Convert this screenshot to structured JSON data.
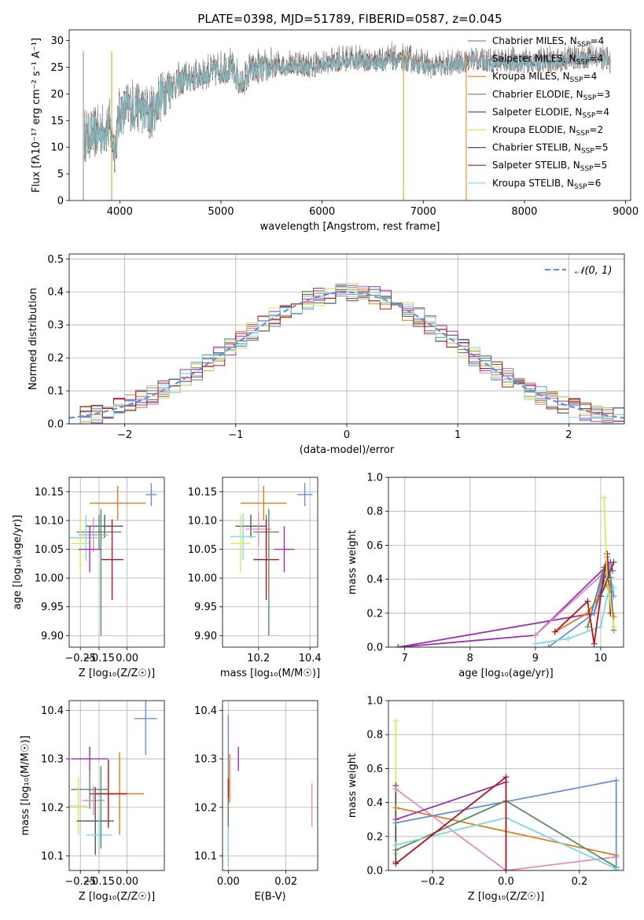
{
  "chart_data": [
    {
      "id": "spectrum",
      "type": "line",
      "title": "PLATE=0398, MJD=51789, FIBERID=0587, z=0.045",
      "xlabel": "wavelength [Angstrom, rest frame]",
      "ylabel": "Flux [fλ10⁻¹⁷ erg cm⁻² s⁻¹ A⁻¹]",
      "xlim": [
        3500,
        9050
      ],
      "ylim": [
        0,
        32
      ],
      "xticks": [
        4000,
        5000,
        6000,
        7000,
        8000,
        9000
      ],
      "yticks": [
        0,
        5,
        10,
        15,
        20,
        25,
        30
      ],
      "grid": false,
      "legend_position": "right",
      "continuum": {
        "x": [
          3650,
          3700,
          3800,
          3900,
          3950,
          4000,
          4100,
          4200,
          4300,
          4400,
          4500,
          4700,
          4900,
          5100,
          5200,
          5300,
          5500,
          5700,
          5900,
          6100,
          6300,
          6500,
          6700,
          6900,
          7100,
          7300,
          7500,
          7700,
          7900,
          8100,
          8300,
          8500,
          8700,
          8850
        ],
        "y": [
          12,
          12.5,
          13,
          14,
          10,
          17,
          18,
          18,
          16,
          20,
          22,
          23.5,
          24.5,
          25.5,
          22,
          25,
          25.5,
          26,
          25.5,
          26.5,
          27,
          26.5,
          27,
          26.5,
          25.5,
          26,
          27,
          26.5,
          26.5,
          26.5,
          26.5,
          27,
          27.5,
          26.5
        ]
      },
      "series": [
        {
          "name": "Chabrier MILES, N_SSP=4",
          "color": "#6a8fd8"
        },
        {
          "name": "Salpeter MILES, N_SSP=4",
          "color": "#e48ebd"
        },
        {
          "name": "Kroupa MILES, N_SSP=4",
          "color": "#e07b1b"
        },
        {
          "name": "Chabrier ELODIE, N_SSP=3",
          "color": "#5b8a66"
        },
        {
          "name": "Salpeter ELODIE, N_SSP=4",
          "color": "#9b30b0"
        },
        {
          "name": "Kroupa ELODIE, N_SSP=2",
          "color": "#d7e85a"
        },
        {
          "name": "Chabrier STELIB, N_SSP=5",
          "color": "#555555"
        },
        {
          "name": "Salpeter STELIB, N_SSP=5",
          "color": "#b0141a"
        },
        {
          "name": "Kroupa STELIB, N_SSP=6",
          "color": "#7fd8e0"
        }
      ]
    },
    {
      "id": "residuals",
      "type": "line",
      "xlabel": "(data-model)/error",
      "ylabel": "Normed distribution",
      "xlim": [
        -2.5,
        2.5
      ],
      "ylim": [
        0,
        0.515
      ],
      "xticks": [
        -2,
        -1,
        0,
        1,
        2
      ],
      "yticks": [
        0.0,
        0.1,
        0.2,
        0.3,
        0.4,
        0.5
      ],
      "grid": true,
      "legend_position": "top-right",
      "legend": "𝒩(0, 1)",
      "gaussian": {
        "mean": 0,
        "sigma": 1,
        "color": "#6a8fd8"
      },
      "histogram_bin_width": 0.1
    },
    {
      "id": "age_vs_Z",
      "type": "scatter",
      "xlabel": "Z [log₁₀(Z/Z☉)]",
      "ylabel": "age  [log₁₀(age/yr)]",
      "xlim": [
        -0.31,
        0.2
      ],
      "ylim": [
        9.88,
        10.175
      ],
      "xticks": [
        -0.25,
        -0.15,
        0.0
      ],
      "xticklabels": [
        "−0.25",
        "−0.15",
        "0.00"
      ],
      "yticks": [
        9.9,
        9.95,
        10.0,
        10.05,
        10.1,
        10.15
      ],
      "grid": true,
      "points": [
        {
          "x": 0.13,
          "xerr": 0.03,
          "y": 10.145,
          "yerr": 0.02,
          "color": "#6a8fd8"
        },
        {
          "x": -0.05,
          "xerr": 0.15,
          "y": 10.13,
          "yerr": 0.03,
          "color": "#e07b1b"
        },
        {
          "x": -0.12,
          "xerr": 0.1,
          "y": 10.09,
          "yerr": 0.02,
          "color": "#555555"
        },
        {
          "x": -0.15,
          "xerr": 0.12,
          "y": 10.08,
          "yerr": 0.03,
          "color": "#5b8a66"
        },
        {
          "x": -0.18,
          "xerr": 0.08,
          "y": 10.075,
          "yerr": 0.03,
          "color": "#e48ebd"
        },
        {
          "x": -0.22,
          "xerr": 0.1,
          "y": 10.07,
          "yerr": 0.04,
          "color": "#7fd8e0"
        },
        {
          "x": -0.25,
          "xerr": 0.05,
          "y": 10.06,
          "yerr": 0.05,
          "color": "#d7e85a"
        },
        {
          "x": -0.2,
          "xerr": 0.06,
          "y": 10.05,
          "yerr": 0.04,
          "color": "#9b30b0"
        },
        {
          "x": -0.08,
          "xerr": 0.06,
          "y": 10.032,
          "yerr": 0.07,
          "color": "#b0141a"
        },
        {
          "x": -0.14,
          "xerr": 0.0,
          "y": 10.01,
          "yerr": 0.11,
          "color": "#5b8a66"
        }
      ]
    },
    {
      "id": "age_vs_mass",
      "type": "scatter",
      "xlabel": "mass [log₁₀(M/M☉)]",
      "xlim": [
        10.06,
        10.43
      ],
      "ylim": [
        9.88,
        10.175
      ],
      "xticks": [
        10.2,
        10.4
      ],
      "yticks": [
        9.9,
        9.95,
        10.0,
        10.05,
        10.1,
        10.15
      ],
      "grid": true,
      "points": [
        {
          "x": 10.38,
          "xerr": 0.03,
          "y": 10.145,
          "yerr": 0.02,
          "color": "#6a8fd8"
        },
        {
          "x": 10.22,
          "xerr": 0.09,
          "y": 10.13,
          "yerr": 0.03,
          "color": "#e07b1b"
        },
        {
          "x": 10.17,
          "xerr": 0.06,
          "y": 10.09,
          "yerr": 0.02,
          "color": "#555555"
        },
        {
          "x": 10.23,
          "xerr": 0.05,
          "y": 10.08,
          "yerr": 0.03,
          "color": "#5b8a66"
        },
        {
          "x": 10.2,
          "xerr": 0.05,
          "y": 10.085,
          "yerr": 0.03,
          "color": "#e48ebd"
        },
        {
          "x": 10.14,
          "xerr": 0.05,
          "y": 10.072,
          "yerr": 0.04,
          "color": "#7fd8e0"
        },
        {
          "x": 10.13,
          "xerr": 0.04,
          "y": 10.06,
          "yerr": 0.05,
          "color": "#d7e85a"
        },
        {
          "x": 10.3,
          "xerr": 0.04,
          "y": 10.05,
          "yerr": 0.04,
          "color": "#9b30b0"
        },
        {
          "x": 10.23,
          "xerr": 0.05,
          "y": 10.032,
          "yerr": 0.07,
          "color": "#b0141a"
        },
        {
          "x": 10.24,
          "xerr": 0.0,
          "y": 10.01,
          "yerr": 0.11,
          "color": "#5b8a66"
        }
      ]
    },
    {
      "id": "weight_vs_age",
      "type": "line",
      "xlabel": "age  [log₁₀(age/yr)]",
      "ylabel": "mass weight",
      "xlim": [
        6.75,
        10.35
      ],
      "ylim": [
        0.0,
        1.0
      ],
      "xticks": [
        7,
        8,
        9,
        10
      ],
      "yticks": [
        0.0,
        0.2,
        0.4,
        0.6,
        0.8,
        1.0
      ],
      "grid": true,
      "series": [
        {
          "color": "#9b30b0",
          "x": [
            6.9,
            9.0,
            10.15,
            10.18
          ],
          "y": [
            0.0,
            0.07,
            0.5,
            0.45
          ]
        },
        {
          "color": "#9b30b0",
          "x": [
            6.9,
            9.9,
            10.1
          ],
          "y": [
            0.0,
            0.2,
            0.45
          ]
        },
        {
          "color": "#e48ebd",
          "x": [
            9.0,
            10.0,
            10.15
          ],
          "y": [
            0.07,
            0.42,
            0.48
          ]
        },
        {
          "color": "#6a8fd8",
          "x": [
            9.2,
            9.9,
            10.1,
            10.2
          ],
          "y": [
            0.0,
            0.2,
            0.53,
            0.3
          ]
        },
        {
          "color": "#7fd8e0",
          "x": [
            9.0,
            9.5,
            10.0,
            10.1,
            10.2
          ],
          "y": [
            0.02,
            0.05,
            0.12,
            0.3,
            0.35
          ]
        },
        {
          "color": "#e07b1b",
          "x": [
            9.3,
            9.8,
            10.1,
            10.2
          ],
          "y": [
            0.09,
            0.2,
            0.37,
            0.18
          ]
        },
        {
          "color": "#5b8a66",
          "x": [
            9.8,
            10.05,
            10.15,
            10.2
          ],
          "y": [
            0.12,
            0.47,
            0.41,
            0.1
          ]
        },
        {
          "color": "#b0141a",
          "x": [
            9.3,
            9.8,
            9.9,
            10.0,
            10.1,
            10.15
          ],
          "y": [
            0.09,
            0.27,
            0.02,
            0.3,
            0.55,
            0.2
          ]
        },
        {
          "color": "#d7e85a",
          "x": [
            10.05,
            10.1,
            10.2
          ],
          "y": [
            0.88,
            0.4,
            0.12
          ]
        },
        {
          "color": "#555555",
          "x": [
            10.0,
            10.2
          ],
          "y": [
            0.3,
            0.5
          ]
        }
      ]
    },
    {
      "id": "mass_vs_Z",
      "type": "scatter",
      "xlabel": "Z [log₁₀(Z/Z☉)]",
      "ylabel": "mass [log₁₀(M/M☉)]",
      "xlim": [
        -0.31,
        0.2
      ],
      "ylim": [
        10.07,
        10.42
      ],
      "xticks": [
        -0.25,
        -0.15,
        0.0
      ],
      "xticklabels": [
        "−0.25",
        "−0.15",
        "0.00"
      ],
      "yticks": [
        10.1,
        10.2,
        10.3,
        10.4
      ],
      "grid": true,
      "points": [
        {
          "x": 0.1,
          "xerr": 0.06,
          "y": 10.383,
          "yerr": 0.075,
          "color": "#6a8fd8"
        },
        {
          "x": -0.2,
          "xerr": 0.1,
          "y": 10.3,
          "yerr": 0.025,
          "color": "#9b30b0"
        },
        {
          "x": -0.04,
          "xerr": 0.13,
          "y": 10.228,
          "yerr": 0.085,
          "color": "#e07b1b"
        },
        {
          "x": -0.1,
          "xerr": 0.1,
          "y": 10.228,
          "yerr": 0.07,
          "color": "#b0141a"
        },
        {
          "x": -0.2,
          "xerr": 0.1,
          "y": 10.237,
          "yerr": 0.04,
          "color": "#5b8a66"
        },
        {
          "x": -0.18,
          "xerr": 0.06,
          "y": 10.214,
          "yerr": 0.03,
          "color": "#e48ebd"
        },
        {
          "x": -0.26,
          "xerr": 0.05,
          "y": 10.203,
          "yerr": 0.06,
          "color": "#d7e85a"
        },
        {
          "x": -0.17,
          "xerr": 0.1,
          "y": 10.172,
          "yerr": 0.07,
          "color": "#555555"
        },
        {
          "x": -0.15,
          "xerr": 0.07,
          "y": 10.143,
          "yerr": 0.04,
          "color": "#7fd8e0"
        },
        {
          "x": -0.14,
          "xerr": 0.0,
          "y": 10.2,
          "yerr": 0.085,
          "color": "#5b8a66"
        }
      ]
    },
    {
      "id": "mass_vs_EBV",
      "type": "scatter",
      "xlabel": "E(B-V)",
      "xlim": [
        -0.002,
        0.031
      ],
      "ylim": [
        10.07,
        10.42
      ],
      "xticks": [
        0.0,
        0.02
      ],
      "xticklabels": [
        "0.00",
        "0.02"
      ],
      "yticks": [
        10.1,
        10.2,
        10.3,
        10.4
      ],
      "grid": true,
      "points": [
        {
          "x": 0.0,
          "y": 10.3,
          "yerr": 0.09,
          "color": "#6a8fd8"
        },
        {
          "x": 0.0035,
          "y": 10.3,
          "yerr": 0.025,
          "color": "#9b30b0"
        },
        {
          "x": 0.0005,
          "y": 10.26,
          "yerr": 0.05,
          "color": "#e07b1b"
        },
        {
          "x": 0.0,
          "y": 10.21,
          "yerr": 0.05,
          "color": "#b0141a"
        },
        {
          "x": 0.0,
          "y": 10.16,
          "yerr": 0.06,
          "color": "#5b8a66"
        },
        {
          "x": 0.0,
          "y": 10.12,
          "yerr": 0.04,
          "color": "#7fd8e0"
        },
        {
          "x": 0.029,
          "y": 10.205,
          "yerr": 0.045,
          "color": "#e48ebd"
        }
      ]
    },
    {
      "id": "weight_vs_Z",
      "type": "line",
      "xlabel": "Z [log₁₀(Z/Z☉)]",
      "ylabel": "mass weight",
      "xlim": [
        -0.32,
        0.32
      ],
      "ylim": [
        0.0,
        1.0
      ],
      "xticks": [
        -0.2,
        0.0,
        0.2
      ],
      "xticklabels": [
        "−0.2",
        "0.0",
        "0.2"
      ],
      "yticks": [
        0.0,
        0.2,
        0.4,
        0.6,
        0.8,
        1.0
      ],
      "grid": true,
      "series": [
        {
          "color": "#d7e85a",
          "x": [
            -0.3,
            -0.3
          ],
          "y": [
            0.88,
            0.1
          ]
        },
        {
          "color": "#555555",
          "x": [
            -0.3,
            -0.3
          ],
          "y": [
            0.5,
            0.05
          ]
        },
        {
          "color": "#e48ebd",
          "x": [
            -0.3,
            0.0,
            0.3
          ],
          "y": [
            0.48,
            0.0,
            0.08
          ]
        },
        {
          "color": "#e07b1b",
          "x": [
            -0.3,
            0.3
          ],
          "y": [
            0.37,
            0.09
          ]
        },
        {
          "color": "#9b30b0",
          "x": [
            -0.3,
            0.0
          ],
          "y": [
            0.3,
            0.52
          ]
        },
        {
          "color": "#6a8fd8",
          "x": [
            -0.3,
            0.3,
            0.3
          ],
          "y": [
            0.28,
            0.53,
            0.0
          ]
        },
        {
          "color": "#5b8a66",
          "x": [
            -0.3,
            0.0,
            0.3
          ],
          "y": [
            0.12,
            0.41,
            0.02
          ]
        },
        {
          "color": "#7fd8e0",
          "x": [
            -0.3,
            0.0,
            0.3
          ],
          "y": [
            0.15,
            0.31,
            0.01
          ]
        },
        {
          "color": "#b0141a",
          "x": [
            -0.3,
            0.0,
            0.0
          ],
          "y": [
            0.04,
            0.55,
            0.0
          ]
        }
      ]
    }
  ]
}
